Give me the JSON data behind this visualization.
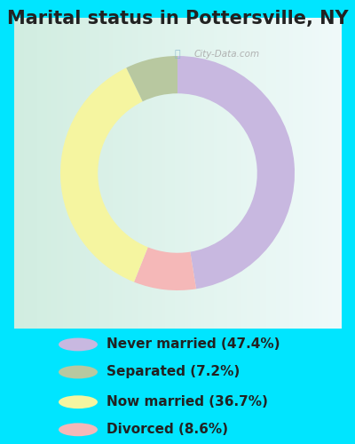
{
  "title": "Marital status in Pottersville, NY",
  "reordered_slices": [
    47.4,
    8.6,
    36.7,
    7.2
  ],
  "reordered_colors": [
    "#c8b8e0",
    "#f5b8b8",
    "#f5f5a0",
    "#b8c8a0"
  ],
  "labels": [
    "Never married (47.4%)",
    "Separated (7.2%)",
    "Now married (36.7%)",
    "Divorced (8.6%)"
  ],
  "legend_colors": [
    "#c8b8e0",
    "#b8c8a0",
    "#f5f5a0",
    "#f5b8b8"
  ],
  "bg_color_outer": "#00e5ff",
  "panel_bg": "#ddf0e8",
  "donut_width": 0.32,
  "startangle": 90,
  "title_fontsize": 15,
  "legend_fontsize": 11,
  "watermark": "City-Data.com"
}
